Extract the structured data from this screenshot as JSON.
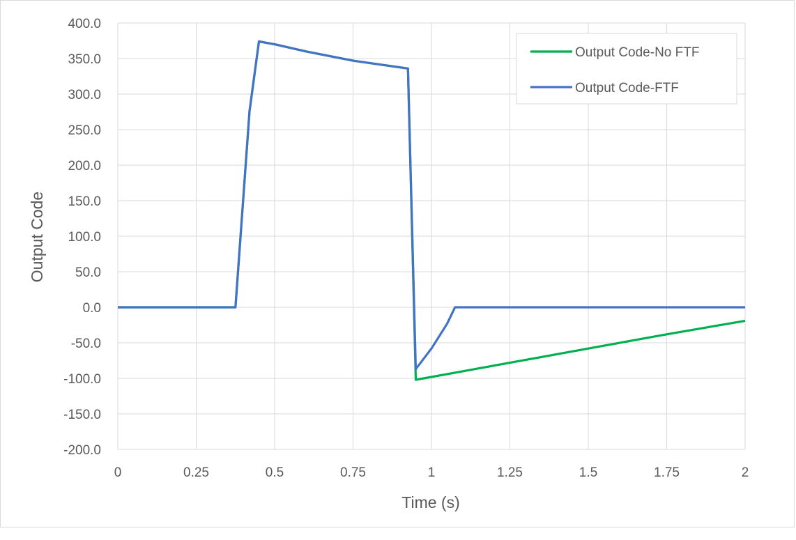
{
  "chart_data": {
    "type": "line",
    "title": "",
    "xlabel": "Time (s)",
    "ylabel": "Output Code",
    "xlim": [
      0,
      2
    ],
    "ylim": [
      -200,
      400
    ],
    "x_ticks": [
      0,
      0.25,
      0.5,
      0.75,
      1,
      1.25,
      1.5,
      1.75,
      2
    ],
    "x_tick_labels": [
      "0",
      "0.25",
      "0.5",
      "0.75",
      "1",
      "1.25",
      "1.5",
      "1.75",
      "2"
    ],
    "y_ticks": [
      400,
      350,
      300,
      250,
      200,
      150,
      100,
      50,
      0,
      -50,
      -100,
      -150,
      -200
    ],
    "y_tick_labels": [
      "400.0",
      "350.0",
      "300.0",
      "250.0",
      "200.0",
      "150.0",
      "100.0",
      "50.0",
      "0.0",
      "-50.0",
      "-100.0",
      "-150.0",
      "-200.0"
    ],
    "grid": true,
    "legend_position": "top-right",
    "series": [
      {
        "name": "Output Code-No FTF",
        "color": "#00b050",
        "points": [
          [
            0,
            0
          ],
          [
            0.375,
            0
          ],
          [
            0.42,
            276
          ],
          [
            0.45,
            374
          ],
          [
            0.5,
            370
          ],
          [
            0.6,
            360
          ],
          [
            0.75,
            347
          ],
          [
            0.925,
            336
          ],
          [
            0.95,
            -102
          ],
          [
            1.0,
            -98
          ],
          [
            1.25,
            -78
          ],
          [
            1.5,
            -58
          ],
          [
            1.75,
            -38
          ],
          [
            2.0,
            -19
          ]
        ]
      },
      {
        "name": "Output Code-FTF",
        "color": "#4472c4",
        "points": [
          [
            0,
            0
          ],
          [
            0.375,
            0
          ],
          [
            0.42,
            276
          ],
          [
            0.45,
            374
          ],
          [
            0.5,
            370
          ],
          [
            0.6,
            360
          ],
          [
            0.75,
            347
          ],
          [
            0.925,
            336
          ],
          [
            0.95,
            -87
          ],
          [
            1.0,
            -58
          ],
          [
            1.05,
            -23
          ],
          [
            1.075,
            0
          ],
          [
            2.0,
            0
          ]
        ]
      }
    ]
  }
}
